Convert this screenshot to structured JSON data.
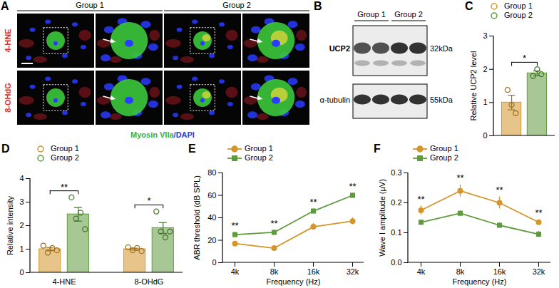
{
  "figure": {
    "A": {
      "panel": "A",
      "groups": [
        "Group 1",
        "Group 2"
      ],
      "rows": [
        "4-HNE",
        "8-OHdG"
      ],
      "row_color": "#e0302a",
      "stain": [
        {
          "text": "Myosin VIIa",
          "color": "#2fb34a"
        },
        {
          "text": "/DAPI",
          "color": "#2b3bd6"
        }
      ]
    },
    "B": {
      "panel": "B",
      "groups": [
        "Group 1",
        "Group 2"
      ],
      "blots": [
        {
          "label": "UCP2",
          "size": "32kDa"
        },
        {
          "label": "α-tubulin",
          "size": "55kDa"
        }
      ]
    }
  },
  "chart_data": [
    {
      "panel": "C",
      "type": "bar",
      "ylabel": "Relative UCP2 level",
      "ylim": [
        0,
        3
      ],
      "yticks": [
        0,
        1,
        2,
        3
      ],
      "tick_labels": "y",
      "legend": "top",
      "series": [
        {
          "name": "Group 1",
          "color": "#d4962a",
          "marker": "circle",
          "values": [
            1.0
          ],
          "error": [
            0.22
          ],
          "points": [
            [
              1.38,
              0.93,
              0.68
            ]
          ]
        },
        {
          "name": "Group 2",
          "color": "#5f9b3c",
          "marker": "circle",
          "values": [
            1.88
          ],
          "error": [
            0.07
          ],
          "points": [
            [
              1.8,
              2.0,
              1.85
            ]
          ]
        }
      ],
      "annotations": [
        {
          "text": "*"
        }
      ]
    },
    {
      "panel": "D",
      "type": "bar",
      "ylabel": "Relative intensity",
      "ylim": [
        0,
        4
      ],
      "yticks": [
        0,
        1,
        2,
        3,
        4
      ],
      "categories": [
        "4-HNE",
        "8-OHdG"
      ],
      "legend": "top",
      "series": [
        {
          "name": "Group 1",
          "color": "#d4962a",
          "marker": "circle",
          "values": [
            1.0,
            1.0
          ],
          "error": [
            0.07,
            0.04
          ],
          "points": [
            [
              1.15,
              0.85,
              1.05,
              0.95
            ],
            [
              1.08,
              0.95,
              1.05,
              0.92
            ]
          ]
        },
        {
          "name": "Group 2",
          "color": "#5f9b3c",
          "marker": "circle",
          "values": [
            2.48,
            1.9
          ],
          "error": [
            0.29,
            0.23
          ],
          "points": [
            [
              3.2,
              2.3,
              2.55,
              1.85
            ],
            [
              2.6,
              1.75,
              1.5,
              1.75
            ]
          ]
        }
      ],
      "annotations": [
        {
          "category": "4-HNE",
          "text": "**"
        },
        {
          "category": "8-OHdG",
          "text": "*"
        }
      ]
    },
    {
      "panel": "E",
      "type": "line",
      "xlabel": "Frequency (Hz)",
      "ylabel": "ABR threshold (dB SPL)",
      "categories": [
        "4k",
        "8k",
        "16k",
        "32k"
      ],
      "ylim": [
        0,
        80
      ],
      "yticks": [
        0,
        20,
        40,
        60,
        80
      ],
      "legend": "top",
      "series": [
        {
          "name": "Group 1",
          "color": "#d4962a",
          "marker": "circle",
          "values": [
            17,
            13,
            32,
            37
          ],
          "error": [
            2,
            2,
            3,
            3
          ]
        },
        {
          "name": "Group 2",
          "color": "#5f9b3c",
          "marker": "square",
          "values": [
            25,
            27,
            46,
            60
          ],
          "error": [
            2,
            2,
            2,
            2
          ]
        }
      ],
      "annotations": [
        {
          "category": "4k",
          "text": "**"
        },
        {
          "category": "8k",
          "text": "**"
        },
        {
          "category": "16k",
          "text": "**"
        },
        {
          "category": "32k",
          "text": "**"
        }
      ]
    },
    {
      "panel": "F",
      "type": "line",
      "xlabel": "Frequency (Hz)",
      "ylabel": "Wave I amplitude (μV)",
      "categories": [
        "4k",
        "8k",
        "16k",
        "32k"
      ],
      "ylim": [
        0,
        0.3
      ],
      "yticks": [
        {
          "value": 0,
          "label": "0.0"
        },
        0.1,
        0.2,
        0.3
      ],
      "legend": "top",
      "series": [
        {
          "name": "Group 1",
          "color": "#d4962a",
          "marker": "circle",
          "values": [
            0.175,
            0.24,
            0.2,
            0.135
          ],
          "error": [
            0.015,
            0.02,
            0.02,
            0.008
          ]
        },
        {
          "name": "Group 2",
          "color": "#5f9b3c",
          "marker": "square",
          "values": [
            0.135,
            0.165,
            0.125,
            0.095
          ],
          "error": [
            0.008,
            0.008,
            0.008,
            0.01
          ]
        }
      ],
      "annotations": [
        {
          "category": "4k",
          "text": "**"
        },
        {
          "category": "8k",
          "text": "**"
        },
        {
          "category": "16k",
          "text": "**"
        },
        {
          "category": "32k",
          "text": "**"
        }
      ]
    }
  ]
}
